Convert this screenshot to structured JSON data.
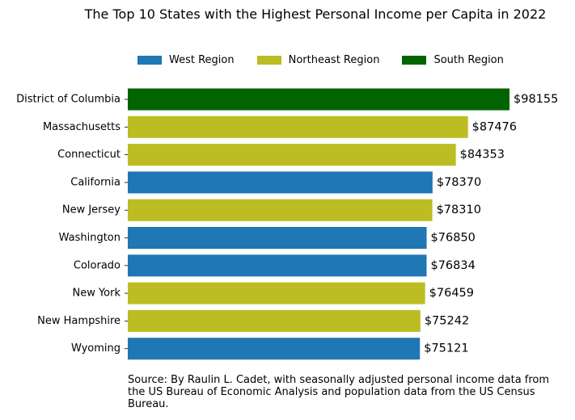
{
  "chart_data": {
    "type": "bar",
    "orientation": "horizontal",
    "title": "The Top 10 States with the Highest Personal Income per Capita in 2022",
    "value_prefix": "$",
    "categories": [
      "District of Columbia",
      "Massachusetts",
      "Connecticut",
      "California",
      "New Jersey",
      "Washington",
      "Colorado",
      "New York",
      "New Hampshire",
      "Wyoming"
    ],
    "values": [
      98155,
      87476,
      84353,
      78370,
      78310,
      76850,
      76834,
      76459,
      75242,
      75121
    ],
    "regions": [
      "South Region",
      "Northeast Region",
      "Northeast Region",
      "West Region",
      "Northeast Region",
      "West Region",
      "West Region",
      "Northeast Region",
      "Northeast Region",
      "West Region"
    ],
    "xlim": [
      0,
      98155
    ],
    "legend": [
      {
        "label": "West Region",
        "color": "#1f77b4"
      },
      {
        "label": "Northeast Region",
        "color": "#bcbd22"
      },
      {
        "label": "South Region",
        "color": "#006400"
      }
    ],
    "legend_position": "top",
    "grid": false,
    "source": "Source: By Raulin L. Cadet, with seasonally adjusted personal income data from the US Bureau of Economic Analysis and population data from the US Census Bureau."
  }
}
